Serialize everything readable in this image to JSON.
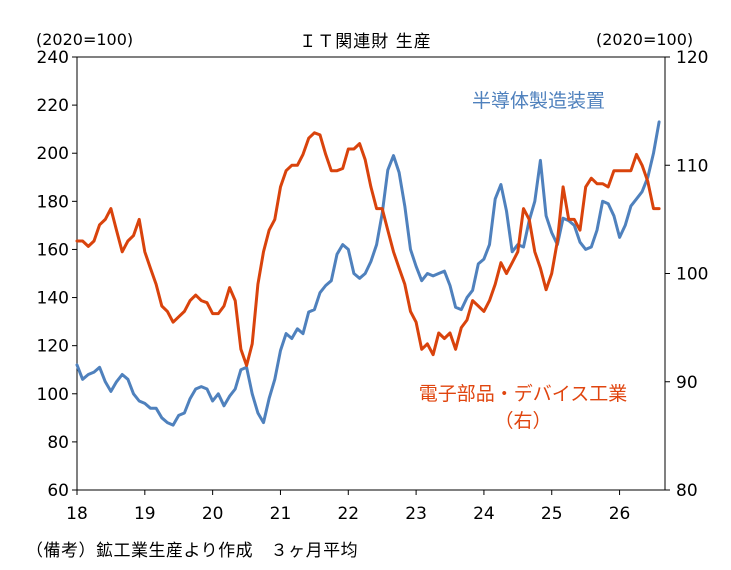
{
  "title": "ＩＴ関連財 生産",
  "unit_left": "(2020=100)",
  "unit_right": "(2020=100)",
  "note": "（備考）鉱工業生産より作成　３ヶ月平均",
  "series_labels": {
    "semiconductor": "半導体製造装置",
    "electronic_line1": "電子部品・デバイス工業",
    "electronic_line2": "（右）"
  },
  "colors": {
    "semiconductor": "#4f81bd",
    "electronic": "#d9430c",
    "axis": "#000000"
  },
  "chart_data": {
    "type": "line",
    "title": "ＩＴ関連財 生産",
    "x_tick_labels": [
      "18",
      "19",
      "20",
      "21",
      "22",
      "23",
      "24",
      "25",
      "26"
    ],
    "xlim": [
      2018.0,
      2026.67
    ],
    "ylim_left": [
      60,
      240
    ],
    "yticks_left": [
      60,
      80,
      100,
      120,
      140,
      160,
      180,
      200,
      220,
      240
    ],
    "ylim_right": [
      80,
      120
    ],
    "yticks_right": [
      80,
      90,
      100,
      110,
      120
    ],
    "grid": false,
    "series": [
      {
        "name": "半導体製造装置",
        "axis": "left",
        "color": "#4f81bd",
        "x": [
          2018.0,
          2018.083,
          2018.167,
          2018.25,
          2018.333,
          2018.417,
          2018.5,
          2018.583,
          2018.667,
          2018.75,
          2018.833,
          2018.917,
          2019.0,
          2019.083,
          2019.167,
          2019.25,
          2019.333,
          2019.417,
          2019.5,
          2019.583,
          2019.667,
          2019.75,
          2019.833,
          2019.917,
          2020.0,
          2020.083,
          2020.167,
          2020.25,
          2020.333,
          2020.417,
          2020.5,
          2020.583,
          2020.667,
          2020.75,
          2020.833,
          2020.917,
          2021.0,
          2021.083,
          2021.167,
          2021.25,
          2021.333,
          2021.417,
          2021.5,
          2021.583,
          2021.667,
          2021.75,
          2021.833,
          2021.917,
          2022.0,
          2022.083,
          2022.167,
          2022.25,
          2022.333,
          2022.417,
          2022.5,
          2022.583,
          2022.667,
          2022.75,
          2022.833,
          2022.917,
          2023.0,
          2023.083,
          2023.167,
          2023.25,
          2023.333,
          2023.417,
          2023.5,
          2023.583,
          2023.667,
          2023.75,
          2023.833,
          2023.917,
          2024.0,
          2024.083,
          2024.167,
          2024.25,
          2024.333,
          2024.417,
          2024.5,
          2024.583,
          2024.667,
          2024.75,
          2024.833,
          2024.917,
          2025.0,
          2025.083,
          2025.167,
          2025.25,
          2025.333,
          2025.417,
          2025.5,
          2025.583,
          2025.667,
          2025.75,
          2025.833,
          2025.917,
          2026.0,
          2026.083,
          2026.167,
          2026.25,
          2026.333,
          2026.417,
          2026.5,
          2026.583
        ],
        "values": [
          112,
          106,
          108,
          109,
          111,
          105,
          101,
          105,
          108,
          106,
          100,
          97,
          96,
          94,
          94,
          90,
          88,
          87,
          91,
          92,
          98,
          102,
          103,
          102,
          97,
          100,
          95,
          99,
          102,
          110,
          111,
          100,
          92,
          88,
          98,
          106,
          118,
          125,
          123,
          127,
          125,
          134,
          135,
          142,
          145,
          147,
          158,
          162,
          160,
          150,
          148,
          150,
          155,
          162,
          175,
          193,
          199,
          192,
          178,
          160,
          153,
          147,
          150,
          149,
          150,
          151,
          145,
          136,
          135,
          140,
          143,
          154,
          156,
          162,
          181,
          187,
          176,
          159,
          162,
          161,
          172,
          180,
          197,
          174,
          167,
          162,
          173,
          172,
          170,
          163,
          160,
          161,
          168,
          180,
          179,
          174,
          165,
          170,
          178,
          181,
          184,
          190,
          200,
          213
        ]
      },
      {
        "name": "電子部品・デバイス工業（右）",
        "axis": "right",
        "color": "#d9430c",
        "x": [
          2018.0,
          2018.083,
          2018.167,
          2018.25,
          2018.333,
          2018.417,
          2018.5,
          2018.583,
          2018.667,
          2018.75,
          2018.833,
          2018.917,
          2019.0,
          2019.083,
          2019.167,
          2019.25,
          2019.333,
          2019.417,
          2019.5,
          2019.583,
          2019.667,
          2019.75,
          2019.833,
          2019.917,
          2020.0,
          2020.083,
          2020.167,
          2020.25,
          2020.333,
          2020.417,
          2020.5,
          2020.583,
          2020.667,
          2020.75,
          2020.833,
          2020.917,
          2021.0,
          2021.083,
          2021.167,
          2021.25,
          2021.333,
          2021.417,
          2021.5,
          2021.583,
          2021.667,
          2021.75,
          2021.833,
          2021.917,
          2022.0,
          2022.083,
          2022.167,
          2022.25,
          2022.333,
          2022.417,
          2022.5,
          2022.583,
          2022.667,
          2022.75,
          2022.833,
          2022.917,
          2023.0,
          2023.083,
          2023.167,
          2023.25,
          2023.333,
          2023.417,
          2023.5,
          2023.583,
          2023.667,
          2023.75,
          2023.833,
          2023.917,
          2024.0,
          2024.083,
          2024.167,
          2024.25,
          2024.333,
          2024.417,
          2024.5,
          2024.583,
          2024.667,
          2024.75,
          2024.833,
          2024.917,
          2025.0,
          2025.083,
          2025.167,
          2025.25,
          2025.333,
          2025.417,
          2025.5,
          2025.583,
          2025.667,
          2025.75,
          2025.833,
          2025.917,
          2026.0,
          2026.083,
          2026.167,
          2026.25,
          2026.333,
          2026.417,
          2026.5,
          2026.583
        ],
        "values": [
          103,
          103,
          102.5,
          103,
          104.5,
          105,
          106,
          104,
          102,
          103,
          103.5,
          105,
          102,
          100.5,
          99,
          97,
          96.5,
          95.5,
          96,
          96.5,
          97.5,
          98,
          97.5,
          97.3,
          96.3,
          96.3,
          97,
          98.7,
          97.5,
          93,
          91.5,
          93.5,
          99,
          102,
          104,
          105,
          108,
          109.5,
          110,
          110,
          111,
          112.5,
          113,
          112.8,
          111,
          109.5,
          109.5,
          109.7,
          111.5,
          111.5,
          112,
          110.5,
          108,
          106,
          106,
          104,
          102,
          100.5,
          99,
          96.5,
          95.5,
          93,
          93.5,
          92.5,
          94.5,
          94,
          94.5,
          93,
          95,
          95.7,
          97.5,
          97,
          96.5,
          97.5,
          99,
          101,
          100,
          101,
          102,
          106,
          105,
          102,
          100.5,
          98.5,
          100,
          103,
          108,
          105,
          105,
          104,
          108,
          108.8,
          108.3,
          108.3,
          108,
          109.5,
          109.5,
          109.5,
          109.5,
          111,
          110,
          108.5,
          106,
          106
        ]
      }
    ]
  }
}
